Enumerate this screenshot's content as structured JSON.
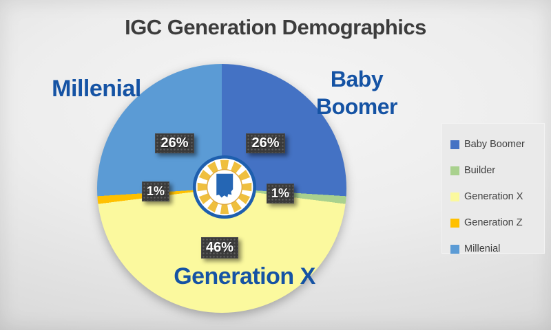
{
  "title": "IGC Generation Demographics",
  "chart_data": {
    "type": "pie",
    "title": "IGC Generation Demographics",
    "direction": "clockwise",
    "start_angle_deg": 0,
    "legend_position": "right",
    "series": [
      {
        "name": "Baby Boomer",
        "value": 26,
        "label": "26%",
        "color": "#4472C4"
      },
      {
        "name": "Builder",
        "value": 1,
        "label": "1%",
        "color": "#A9D18E"
      },
      {
        "name": "Generation X",
        "value": 46,
        "label": "46%",
        "color": "#FBF99E"
      },
      {
        "name": "Generation Z",
        "value": 1,
        "label": "1%",
        "color": "#FFC000"
      },
      {
        "name": "Millenial",
        "value": 26,
        "label": "26%",
        "color": "#5B9BD5"
      }
    ]
  },
  "callouts": {
    "millenial": "Millenial",
    "baby_boomer_line1": "Baby",
    "baby_boomer_line2": "Boomer",
    "generation_x": "Generation X",
    "millenial_pct": "26%",
    "baby_boomer_pct": "26%",
    "gen_z_pct": "1%",
    "builder_pct": "1%",
    "gen_x_pct": "46%"
  },
  "colors": {
    "callout_blue": "#1553A4",
    "title_gray": "#3C3C3C",
    "label_box": "#3A3A3A",
    "logo_ring": "#1E5FAE",
    "logo_stripe": "#EFBF3E",
    "logo_state": "#2566B4"
  },
  "logo": {
    "name": "indiana-gaming-chip-logo"
  }
}
